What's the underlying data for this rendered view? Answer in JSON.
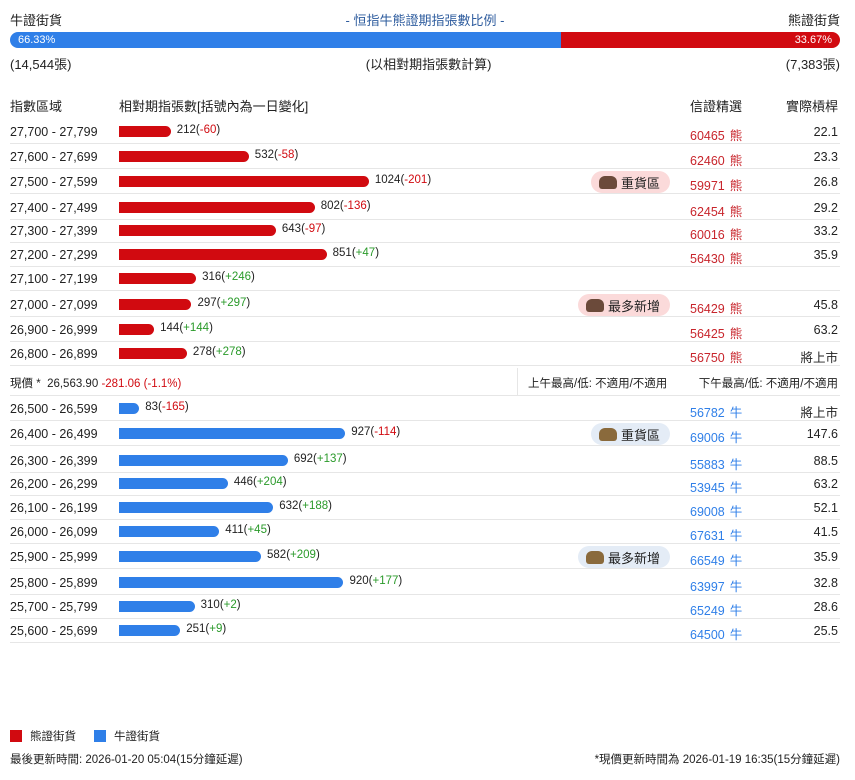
{
  "header": {
    "bull_label": "牛證街貨",
    "title": "- 恒指牛熊證期指張數比例 -",
    "bear_label": "熊證街貨",
    "bull_pct": "66.33%",
    "bear_pct": "33.67%",
    "bull_ratio": 66.33,
    "bull_count": "(14,544張)",
    "note": "(以相對期指張數計算)",
    "bear_count": "(7,383張)"
  },
  "columns": {
    "range": "指數區域",
    "contracts": "相對期指張數[括號內為一日變化]",
    "pick": "信證精選",
    "leverage": "實際槓桿"
  },
  "colors": {
    "bull": "#2f7fe8",
    "bear": "#d10a10",
    "bull_code": "#2f7fe8",
    "bear_code": "#c8252c"
  },
  "bear_rows": [
    {
      "range": "27,700 - 27,799",
      "count": 212,
      "change": "-60",
      "code": "60465",
      "type": "熊",
      "leverage": "22.1"
    },
    {
      "range": "27,600 - 27,699",
      "count": 532,
      "change": "-58",
      "code": "62460",
      "type": "熊",
      "leverage": "23.3"
    },
    {
      "range": "27,500 - 27,599",
      "count": 1024,
      "change": "-201",
      "code": "59971",
      "type": "熊",
      "leverage": "26.8",
      "badge": "重貨區"
    },
    {
      "range": "27,400 - 27,499",
      "count": 802,
      "change": "-136",
      "code": "62454",
      "type": "熊",
      "leverage": "29.2"
    },
    {
      "range": "27,300 - 27,399",
      "count": 643,
      "change": "-97",
      "code": "60016",
      "type": "熊",
      "leverage": "33.2"
    },
    {
      "range": "27,200 - 27,299",
      "count": 851,
      "change": "+47",
      "code": "56430",
      "type": "熊",
      "leverage": "35.9"
    },
    {
      "range": "27,100 - 27,199",
      "count": 316,
      "change": "+246"
    },
    {
      "range": "27,000 - 27,099",
      "count": 297,
      "change": "+297",
      "code": "56429",
      "type": "熊",
      "leverage": "45.8",
      "badge": "最多新增"
    },
    {
      "range": "26,900 - 26,999",
      "count": 144,
      "change": "+144",
      "code": "56425",
      "type": "熊",
      "leverage": "63.2"
    },
    {
      "range": "26,800 - 26,899",
      "count": 278,
      "change": "+278",
      "code": "56750",
      "type": "熊",
      "leverage": "將上市"
    }
  ],
  "price": {
    "label": "現價 *",
    "value": "26,563.90",
    "change": "-281.06 (-1.1%)",
    "am": "上午最高/低: 不適用/不適用",
    "pm": "下午最高/低: 不適用/不適用"
  },
  "bull_rows": [
    {
      "range": "26,500 - 26,599",
      "count": 83,
      "change": "-165",
      "code": "56782",
      "type": "牛",
      "leverage": "將上市"
    },
    {
      "range": "26,400 - 26,499",
      "count": 927,
      "change": "-114",
      "code": "69006",
      "type": "牛",
      "leverage": "147.6",
      "badge": "重貨區"
    },
    {
      "range": "26,300 - 26,399",
      "count": 692,
      "change": "+137",
      "code": "55883",
      "type": "牛",
      "leverage": "88.5"
    },
    {
      "range": "26,200 - 26,299",
      "count": 446,
      "change": "+204",
      "code": "53945",
      "type": "牛",
      "leverage": "63.2"
    },
    {
      "range": "26,100 - 26,199",
      "count": 632,
      "change": "+188",
      "code": "69008",
      "type": "牛",
      "leverage": "52.1"
    },
    {
      "range": "26,000 - 26,099",
      "count": 411,
      "change": "+45",
      "code": "67631",
      "type": "牛",
      "leverage": "41.5"
    },
    {
      "range": "25,900 - 25,999",
      "count": 582,
      "change": "+209",
      "code": "66549",
      "type": "牛",
      "leverage": "35.9",
      "badge": "最多新增"
    },
    {
      "range": "25,800 - 25,899",
      "count": 920,
      "change": "+177",
      "code": "63997",
      "type": "牛",
      "leverage": "32.8"
    },
    {
      "range": "25,700 - 25,799",
      "count": 310,
      "change": "+2",
      "code": "65249",
      "type": "牛",
      "leverage": "28.6"
    },
    {
      "range": "25,600 - 25,699",
      "count": 251,
      "change": "+9",
      "code": "64500",
      "type": "牛",
      "leverage": "25.5"
    }
  ],
  "legend": {
    "bear": "熊證街貨",
    "bull": "牛證街貨"
  },
  "footer": {
    "updated": "最後更新時間: 2026-01-20 05:04(15分鐘延遲)",
    "price_updated": "*現價更新時間為 2026-01-19 16:35(15分鐘延遲)"
  }
}
